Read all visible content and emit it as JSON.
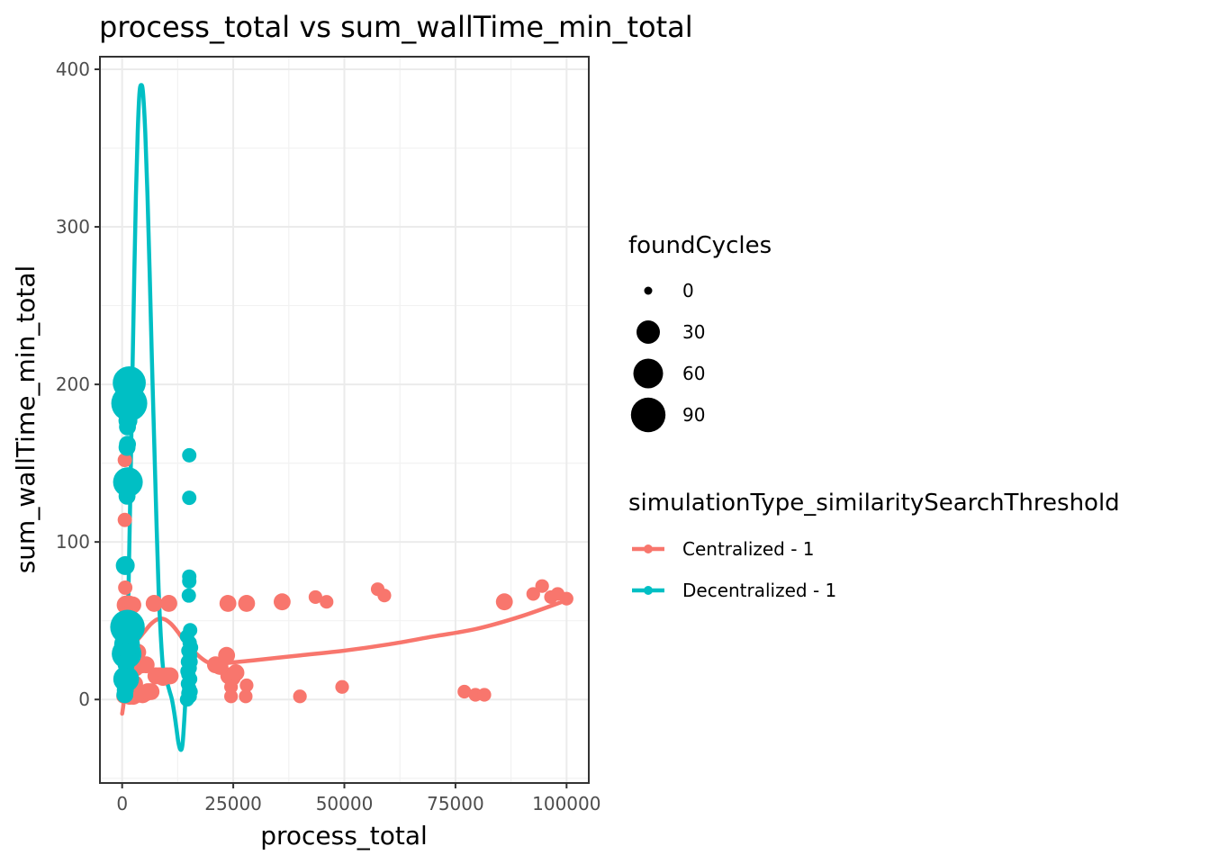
{
  "chart_data": {
    "type": "scatter",
    "title": "process_total  vs  sum_wallTime_min_total",
    "xlabel": "process_total",
    "ylabel": "sum_wallTime_min_total",
    "xlim": [
      -5000,
      105000
    ],
    "ylim": [
      -53,
      408
    ],
    "x_ticks": [
      0,
      25000,
      50000,
      75000,
      100000
    ],
    "x_tick_labels": [
      "0",
      "25000",
      "50000",
      "75000",
      "100000"
    ],
    "y_ticks": [
      0,
      100,
      200,
      300,
      400
    ],
    "y_tick_labels": [
      "0",
      "100",
      "200",
      "300",
      "400"
    ],
    "grid": true,
    "legend_position": "right",
    "size_legend": {
      "title": "foundCycles",
      "entries": [
        {
          "label": "0",
          "value": 0
        },
        {
          "label": "30",
          "value": 30
        },
        {
          "label": "60",
          "value": 60
        },
        {
          "label": "90",
          "value": 90
        }
      ]
    },
    "color_legend": {
      "title": "simulationType_similaritySearchThreshold"
    },
    "series": [
      {
        "name": "Centralized - 1",
        "color": "#F8766D",
        "points": [
          {
            "x": 300,
            "y": 2,
            "s": 5
          },
          {
            "x": 500,
            "y": 5,
            "s": 5
          },
          {
            "x": 700,
            "y": 8,
            "s": 5
          },
          {
            "x": 400,
            "y": 35,
            "s": 5
          },
          {
            "x": 600,
            "y": 52,
            "s": 5
          },
          {
            "x": 700,
            "y": 71,
            "s": 5
          },
          {
            "x": 500,
            "y": 86,
            "s": 5
          },
          {
            "x": 600,
            "y": 114,
            "s": 5
          },
          {
            "x": 600,
            "y": 152,
            "s": 5
          },
          {
            "x": 900,
            "y": 60,
            "s": 15
          },
          {
            "x": 1500,
            "y": 60,
            "s": 15
          },
          {
            "x": 2000,
            "y": 60,
            "s": 10
          },
          {
            "x": 2400,
            "y": 60,
            "s": 10
          },
          {
            "x": 1200,
            "y": 30,
            "s": 10
          },
          {
            "x": 1800,
            "y": 25,
            "s": 10
          },
          {
            "x": 2300,
            "y": 20,
            "s": 10
          },
          {
            "x": 3000,
            "y": 20,
            "s": 10
          },
          {
            "x": 3500,
            "y": 30,
            "s": 10
          },
          {
            "x": 2800,
            "y": 10,
            "s": 10
          },
          {
            "x": 1300,
            "y": 5,
            "s": 10
          },
          {
            "x": 1700,
            "y": 2,
            "s": 10
          },
          {
            "x": 2500,
            "y": 2,
            "s": 10
          },
          {
            "x": 3200,
            "y": 3,
            "s": 10
          },
          {
            "x": 4200,
            "y": 4,
            "s": 10
          },
          {
            "x": 4600,
            "y": 3,
            "s": 10
          },
          {
            "x": 5200,
            "y": 4,
            "s": 10
          },
          {
            "x": 5800,
            "y": 5,
            "s": 10
          },
          {
            "x": 6500,
            "y": 5,
            "s": 10
          },
          {
            "x": 4500,
            "y": 22,
            "s": 10
          },
          {
            "x": 5400,
            "y": 22,
            "s": 10
          },
          {
            "x": 7600,
            "y": 15,
            "s": 10
          },
          {
            "x": 8400,
            "y": 15,
            "s": 10
          },
          {
            "x": 9200,
            "y": 14,
            "s": 10
          },
          {
            "x": 10000,
            "y": 15,
            "s": 10
          },
          {
            "x": 10800,
            "y": 15,
            "s": 10
          },
          {
            "x": 7200,
            "y": 61,
            "s": 10
          },
          {
            "x": 10500,
            "y": 61,
            "s": 10
          },
          {
            "x": 21000,
            "y": 22,
            "s": 10
          },
          {
            "x": 22000,
            "y": 21,
            "s": 10
          },
          {
            "x": 23500,
            "y": 28,
            "s": 10
          },
          {
            "x": 24000,
            "y": 15,
            "s": 10
          },
          {
            "x": 24800,
            "y": 14,
            "s": 10
          },
          {
            "x": 25600,
            "y": 17,
            "s": 10
          },
          {
            "x": 23800,
            "y": 61,
            "s": 10
          },
          {
            "x": 28000,
            "y": 61,
            "s": 10
          },
          {
            "x": 24500,
            "y": 8,
            "s": 4
          },
          {
            "x": 24500,
            "y": 2,
            "s": 4
          },
          {
            "x": 28000,
            "y": 9,
            "s": 4
          },
          {
            "x": 27800,
            "y": 2,
            "s": 4
          },
          {
            "x": 36000,
            "y": 62,
            "s": 10
          },
          {
            "x": 43500,
            "y": 65,
            "s": 4
          },
          {
            "x": 46000,
            "y": 62,
            "s": 4
          },
          {
            "x": 40000,
            "y": 2,
            "s": 4
          },
          {
            "x": 49500,
            "y": 8,
            "s": 4
          },
          {
            "x": 57500,
            "y": 70,
            "s": 4
          },
          {
            "x": 59000,
            "y": 66,
            "s": 4
          },
          {
            "x": 77000,
            "y": 5,
            "s": 4
          },
          {
            "x": 79500,
            "y": 3,
            "s": 4
          },
          {
            "x": 81500,
            "y": 3,
            "s": 4
          },
          {
            "x": 86000,
            "y": 62,
            "s": 10
          },
          {
            "x": 92500,
            "y": 67,
            "s": 4
          },
          {
            "x": 94500,
            "y": 72,
            "s": 4
          },
          {
            "x": 96500,
            "y": 65,
            "s": 4
          },
          {
            "x": 98000,
            "y": 67,
            "s": 4
          },
          {
            "x": 100000,
            "y": 64,
            "s": 4
          }
        ],
        "smooth": [
          [
            0,
            -9
          ],
          [
            300,
            -3
          ],
          [
            700,
            8
          ],
          [
            1100,
            20
          ],
          [
            1500,
            30
          ],
          [
            2500,
            35
          ],
          [
            3500,
            38
          ],
          [
            5000,
            43
          ],
          [
            6500,
            48
          ],
          [
            8000,
            51
          ],
          [
            9500,
            51
          ],
          [
            11000,
            48
          ],
          [
            12500,
            43
          ],
          [
            14000,
            37
          ],
          [
            16000,
            31
          ],
          [
            17500,
            27
          ],
          [
            19000,
            24
          ],
          [
            21000,
            22
          ],
          [
            23000,
            23
          ],
          [
            30000,
            25
          ],
          [
            40000,
            28
          ],
          [
            50000,
            31
          ],
          [
            60000,
            35
          ],
          [
            70000,
            40
          ],
          [
            80000,
            45
          ],
          [
            90000,
            53
          ],
          [
            100000,
            63
          ]
        ]
      },
      {
        "name": "Decentralized - 1",
        "color": "#00BFC4",
        "points": [
          {
            "x": 600,
            "y": 3,
            "s": 10
          },
          {
            "x": 700,
            "y": 6,
            "s": 10
          },
          {
            "x": 900,
            "y": 13,
            "s": 40
          },
          {
            "x": 1000,
            "y": 17,
            "s": 10
          },
          {
            "x": 900,
            "y": 22,
            "s": 10
          },
          {
            "x": 1000,
            "y": 29,
            "s": 60
          },
          {
            "x": 1100,
            "y": 35,
            "s": 40
          },
          {
            "x": 1200,
            "y": 46,
            "s": 90
          },
          {
            "x": 700,
            "y": 85,
            "s": 15
          },
          {
            "x": 1100,
            "y": 129,
            "s": 10
          },
          {
            "x": 1300,
            "y": 138,
            "s": 60
          },
          {
            "x": 1100,
            "y": 160,
            "s": 10
          },
          {
            "x": 1200,
            "y": 162,
            "s": 10
          },
          {
            "x": 1200,
            "y": 173,
            "s": 10
          },
          {
            "x": 1300,
            "y": 177,
            "s": 15
          },
          {
            "x": 1600,
            "y": 188,
            "s": 100
          },
          {
            "x": 1600,
            "y": 201,
            "s": 80
          },
          {
            "x": 1400,
            "y": 12,
            "s": 10
          },
          {
            "x": 15100,
            "y": 155,
            "s": 5
          },
          {
            "x": 15100,
            "y": 128,
            "s": 5
          },
          {
            "x": 15100,
            "y": 78,
            "s": 5
          },
          {
            "x": 15100,
            "y": 75,
            "s": 5
          },
          {
            "x": 15000,
            "y": 66,
            "s": 5
          },
          {
            "x": 15300,
            "y": 44,
            "s": 5
          },
          {
            "x": 15200,
            "y": 36,
            "s": 5
          },
          {
            "x": 14900,
            "y": 31,
            "s": 5
          },
          {
            "x": 15300,
            "y": 28,
            "s": 5
          },
          {
            "x": 14800,
            "y": 24,
            "s": 5
          },
          {
            "x": 15200,
            "y": 20,
            "s": 5
          },
          {
            "x": 14900,
            "y": 16,
            "s": 5
          },
          {
            "x": 15300,
            "y": 13,
            "s": 5
          },
          {
            "x": 14800,
            "y": 10,
            "s": 5
          },
          {
            "x": 15100,
            "y": 7,
            "s": 5
          },
          {
            "x": 14900,
            "y": 4,
            "s": 5
          },
          {
            "x": 15200,
            "y": 2,
            "s": 5
          },
          {
            "x": 14600,
            "y": 0,
            "s": 5
          },
          {
            "x": 15400,
            "y": 5,
            "s": 5
          },
          {
            "x": 14700,
            "y": 18,
            "s": 5
          },
          {
            "x": 15400,
            "y": 24,
            "s": 5
          },
          {
            "x": 15500,
            "y": 33,
            "s": 5
          },
          {
            "x": 14600,
            "y": 40,
            "s": 5
          }
        ],
        "smooth": [
          [
            500,
            0
          ],
          [
            800,
            10
          ],
          [
            1100,
            30
          ],
          [
            1500,
            80
          ],
          [
            1900,
            140
          ],
          [
            2300,
            205
          ],
          [
            2700,
            265
          ],
          [
            3100,
            320
          ],
          [
            3500,
            360
          ],
          [
            3900,
            385
          ],
          [
            4300,
            390
          ],
          [
            4700,
            385
          ],
          [
            5200,
            360
          ],
          [
            5700,
            320
          ],
          [
            6200,
            270
          ],
          [
            6700,
            215
          ],
          [
            7200,
            165
          ],
          [
            7700,
            115
          ],
          [
            8200,
            70
          ],
          [
            8700,
            40
          ],
          [
            9200,
            20
          ],
          [
            9700,
            15
          ],
          [
            10200,
            10
          ],
          [
            10700,
            5
          ],
          [
            11200,
            0
          ],
          [
            11700,
            -8
          ],
          [
            12200,
            -18
          ],
          [
            12700,
            -28
          ],
          [
            13200,
            -32
          ],
          [
            13600,
            -28
          ],
          [
            14000,
            -12
          ],
          [
            14400,
            8
          ],
          [
            14800,
            25
          ],
          [
            15200,
            36
          ],
          [
            15600,
            40
          ]
        ]
      }
    ]
  }
}
